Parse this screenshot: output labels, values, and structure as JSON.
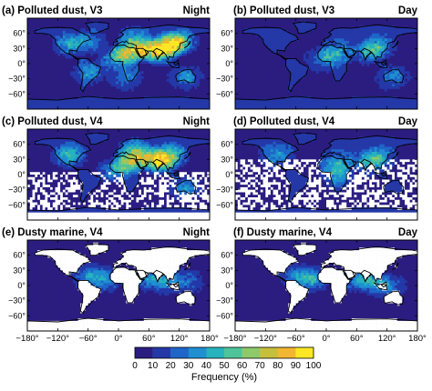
{
  "figure": {
    "colorbar": {
      "label": "Frequency (%)",
      "ticks": [
        "0",
        "10",
        "20",
        "30",
        "40",
        "50",
        "60",
        "70",
        "80",
        "90",
        "100"
      ],
      "colors": [
        "#2b1d80",
        "#2438a8",
        "#1f66c8",
        "#1f8fd0",
        "#26b3be",
        "#4fc49b",
        "#8ec96a",
        "#c6bf3c",
        "#f2b632",
        "#fde725"
      ]
    },
    "lon_ticks": [
      "−180°",
      "−120°",
      "−60°",
      "0°",
      "60°",
      "120°",
      "180°"
    ],
    "lat_ticks_left": [
      "60°",
      "30°",
      "0°",
      "−30°",
      "−60°"
    ],
    "lat_ticks_right": [
      "60°",
      "30°",
      "0°",
      "−30°",
      "−60°"
    ]
  },
  "chart_data": [
    {
      "type": "heatmap",
      "title": "(a) Polluted dust, V3",
      "time": "Night",
      "data": {
        "background": "#2b1d80",
        "water": "#2b1d80",
        "land": "#2438a8",
        "hotspots": [
          {
            "lon": 20,
            "lat": 25,
            "value": 75
          },
          {
            "lon": 60,
            "lat": 30,
            "value": 65
          },
          {
            "lon": 100,
            "lat": 40,
            "value": 70
          },
          {
            "lon": 80,
            "lat": 25,
            "value": 60
          },
          {
            "lon": -10,
            "lat": 10,
            "value": 40
          },
          {
            "lon": 120,
            "lat": 45,
            "value": 55
          },
          {
            "lon": 30,
            "lat": 50,
            "value": 35
          },
          {
            "lon": -60,
            "lat": 45,
            "value": 30
          },
          {
            "lon": -100,
            "lat": 40,
            "value": 30
          },
          {
            "lon": 130,
            "lat": -25,
            "value": 25
          },
          {
            "lon": -60,
            "lat": -15,
            "value": 25
          },
          {
            "lon": 10,
            "lat": -25,
            "value": 25
          }
        ],
        "white_region": "none"
      }
    },
    {
      "type": "heatmap",
      "title": "(b) Polluted dust, V3",
      "time": "Day",
      "data": {
        "background": "#2b1d80",
        "water": "#2b1d80",
        "land": "#2438a8",
        "hotspots": [
          {
            "lon": 20,
            "lat": 25,
            "value": 35
          },
          {
            "lon": 80,
            "lat": 25,
            "value": 30
          },
          {
            "lon": 100,
            "lat": 35,
            "value": 30
          },
          {
            "lon": -10,
            "lat": 10,
            "value": 25
          },
          {
            "lon": 130,
            "lat": -25,
            "value": 20
          }
        ],
        "white_region": "none"
      }
    },
    {
      "type": "heatmap",
      "title": "(c) Polluted dust, V4",
      "time": "Night",
      "data": {
        "background": "#2b1d80",
        "water": "#2b1d80",
        "land": "#2438a8",
        "hotspots": [
          {
            "lon": 20,
            "lat": 28,
            "value": 60
          },
          {
            "lon": 60,
            "lat": 35,
            "value": 55
          },
          {
            "lon": 100,
            "lat": 40,
            "value": 60
          },
          {
            "lon": 80,
            "lat": 25,
            "value": 50
          },
          {
            "lon": -100,
            "lat": 40,
            "value": 40
          },
          {
            "lon": 30,
            "lat": 50,
            "value": 40
          },
          {
            "lon": -10,
            "lat": 10,
            "value": 35
          },
          {
            "lon": 130,
            "lat": -25,
            "value": 25
          }
        ],
        "white_region": "south-oceans"
      }
    },
    {
      "type": "heatmap",
      "title": "(d) Polluted dust, V4",
      "time": "Day",
      "data": {
        "background": "#2b1d80",
        "water": "#2b1d80",
        "land": "#2438a8",
        "hotspots": [
          {
            "lon": 20,
            "lat": 25,
            "value": 35
          },
          {
            "lon": 80,
            "lat": 25,
            "value": 30
          },
          {
            "lon": 100,
            "lat": 35,
            "value": 35
          },
          {
            "lon": -100,
            "lat": 40,
            "value": 25
          },
          {
            "lon": 20,
            "lat": 0,
            "value": 30
          }
        ],
        "white_region": "oceans-mixed"
      }
    },
    {
      "type": "heatmap",
      "title": "(e) Dusty marine, V4",
      "time": "Night",
      "data": {
        "background": "#2b1d80",
        "water": "#2b1d80",
        "land": "#ffffff",
        "hotspots": [
          {
            "lon": -30,
            "lat": 15,
            "value": 35
          },
          {
            "lon": -60,
            "lat": 20,
            "value": 30
          },
          {
            "lon": 60,
            "lat": 15,
            "value": 30
          },
          {
            "lon": 90,
            "lat": 10,
            "value": 30
          },
          {
            "lon": 130,
            "lat": 10,
            "value": 25
          }
        ],
        "white_region": "land"
      }
    },
    {
      "type": "heatmap",
      "title": "(f) Dusty marine, V4",
      "time": "Day",
      "data": {
        "background": "#2b1d80",
        "water": "#2b1d80",
        "land": "#ffffff",
        "hotspots": [
          {
            "lon": -30,
            "lat": 15,
            "value": 40
          },
          {
            "lon": -60,
            "lat": 20,
            "value": 35
          },
          {
            "lon": 60,
            "lat": 15,
            "value": 35
          },
          {
            "lon": 90,
            "lat": 10,
            "value": 35
          },
          {
            "lon": 120,
            "lat": 0,
            "value": 30
          }
        ],
        "white_region": "land"
      }
    }
  ]
}
